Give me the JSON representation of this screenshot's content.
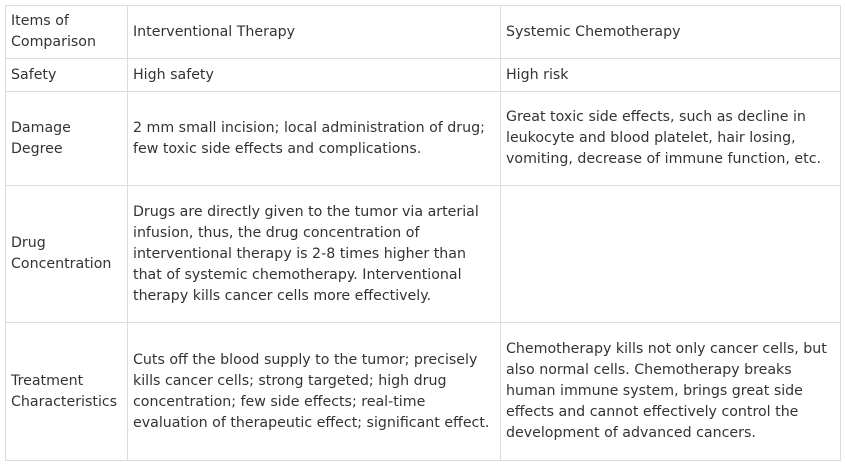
{
  "table": {
    "header": [
      "Items of Comparison",
      "Interventional Therapy",
      "Systemic Chemotherapy"
    ],
    "rows": [
      [
        "Safety",
        "High safety",
        "High risk"
      ],
      [
        "Damage Degree",
        "2 mm small incision; local administration of drug; few toxic side effects and complications.",
        "Great toxic side effects, such as decline in leukocyte and blood platelet, hair losing, vomiting, decrease of immune function, etc."
      ],
      [
        "Drug Concentration",
        "Drugs are directly given to the tumor via arterial infusion, thus, the drug concentration of interventional therapy is 2-8 times higher than that of systemic chemotherapy. Interventional therapy kills cancer cells more effectively.",
        ""
      ],
      [
        "Treatment Characteristics",
        "Cuts off the blood supply to the tumor; precisely kills cancer cells; strong targeted; high drug concentration; few side effects; real-time evaluation of therapeutic effect; significant effect.",
        "Chemotherapy kills not only cancer cells, but also normal cells. Chemotherapy breaks human immune system, brings great side effects and cannot effectively control the development of advanced cancers."
      ]
    ]
  }
}
